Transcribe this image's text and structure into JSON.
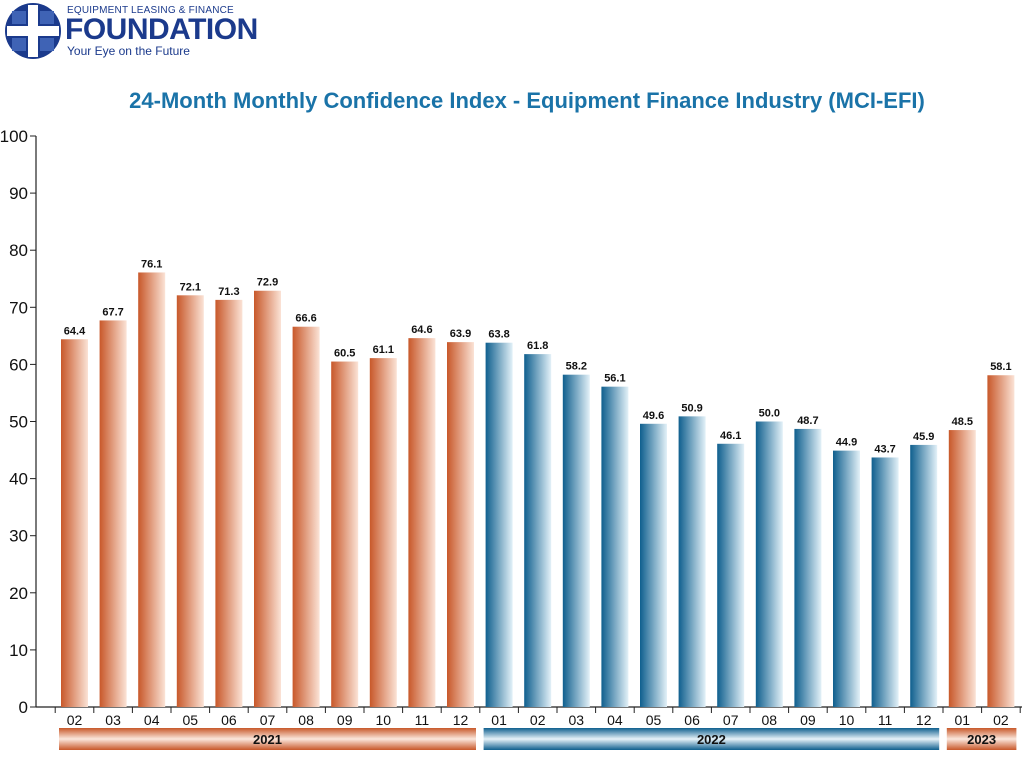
{
  "brand": {
    "top_line": "EQUIPMENT LEASING & FINANCE",
    "name": "FOUNDATION",
    "tagline": "Your Eye on the Future",
    "color": "#1b3a8c"
  },
  "chart_data": {
    "type": "bar",
    "title": "24-Month Monthly Confidence Index - Equipment Finance Industry (MCI-EFI)",
    "xlabel": "",
    "ylabel": "",
    "ylim": [
      0,
      100
    ],
    "yticks": [
      0,
      10,
      20,
      30,
      40,
      50,
      60,
      70,
      80,
      90,
      100
    ],
    "grid": false,
    "categories": [
      "02",
      "03",
      "04",
      "05",
      "06",
      "07",
      "08",
      "09",
      "10",
      "11",
      "12",
      "01",
      "02",
      "03",
      "04",
      "05",
      "06",
      "07",
      "08",
      "09",
      "10",
      "11",
      "12",
      "01",
      "02"
    ],
    "values": [
      64.4,
      67.7,
      76.1,
      72.1,
      71.3,
      72.9,
      66.6,
      60.5,
      61.1,
      64.6,
      63.9,
      63.8,
      61.8,
      58.2,
      56.1,
      49.6,
      50.9,
      46.1,
      50.0,
      48.7,
      44.9,
      43.7,
      45.9,
      48.5,
      58.1
    ],
    "value_labels": [
      "64.4",
      "67.7",
      "76.1",
      "72.1",
      "71.3",
      "72.9",
      "66.6",
      "60.5",
      "61.1",
      "64.6",
      "63.9",
      "63.8",
      "61.8",
      "58.2",
      "56.1",
      "49.6",
      "50.9",
      "46.1",
      "50.0",
      "48.7",
      "44.9",
      "43.7",
      "45.9",
      "48.5",
      "58.1"
    ],
    "years": [
      {
        "label": "2021",
        "start": 0,
        "end": 10,
        "color": "orange"
      },
      {
        "label": "2022",
        "start": 11,
        "end": 22,
        "color": "blue"
      },
      {
        "label": "2023",
        "start": 23,
        "end": 24,
        "color": "orange"
      }
    ],
    "colors": {
      "orange_dark": "#c8582a",
      "orange_light": "#fbe3d6",
      "blue_dark": "#0f5f8e",
      "blue_light": "#e3f1f8",
      "title": "#1a73a8",
      "axis": "#222222"
    }
  }
}
